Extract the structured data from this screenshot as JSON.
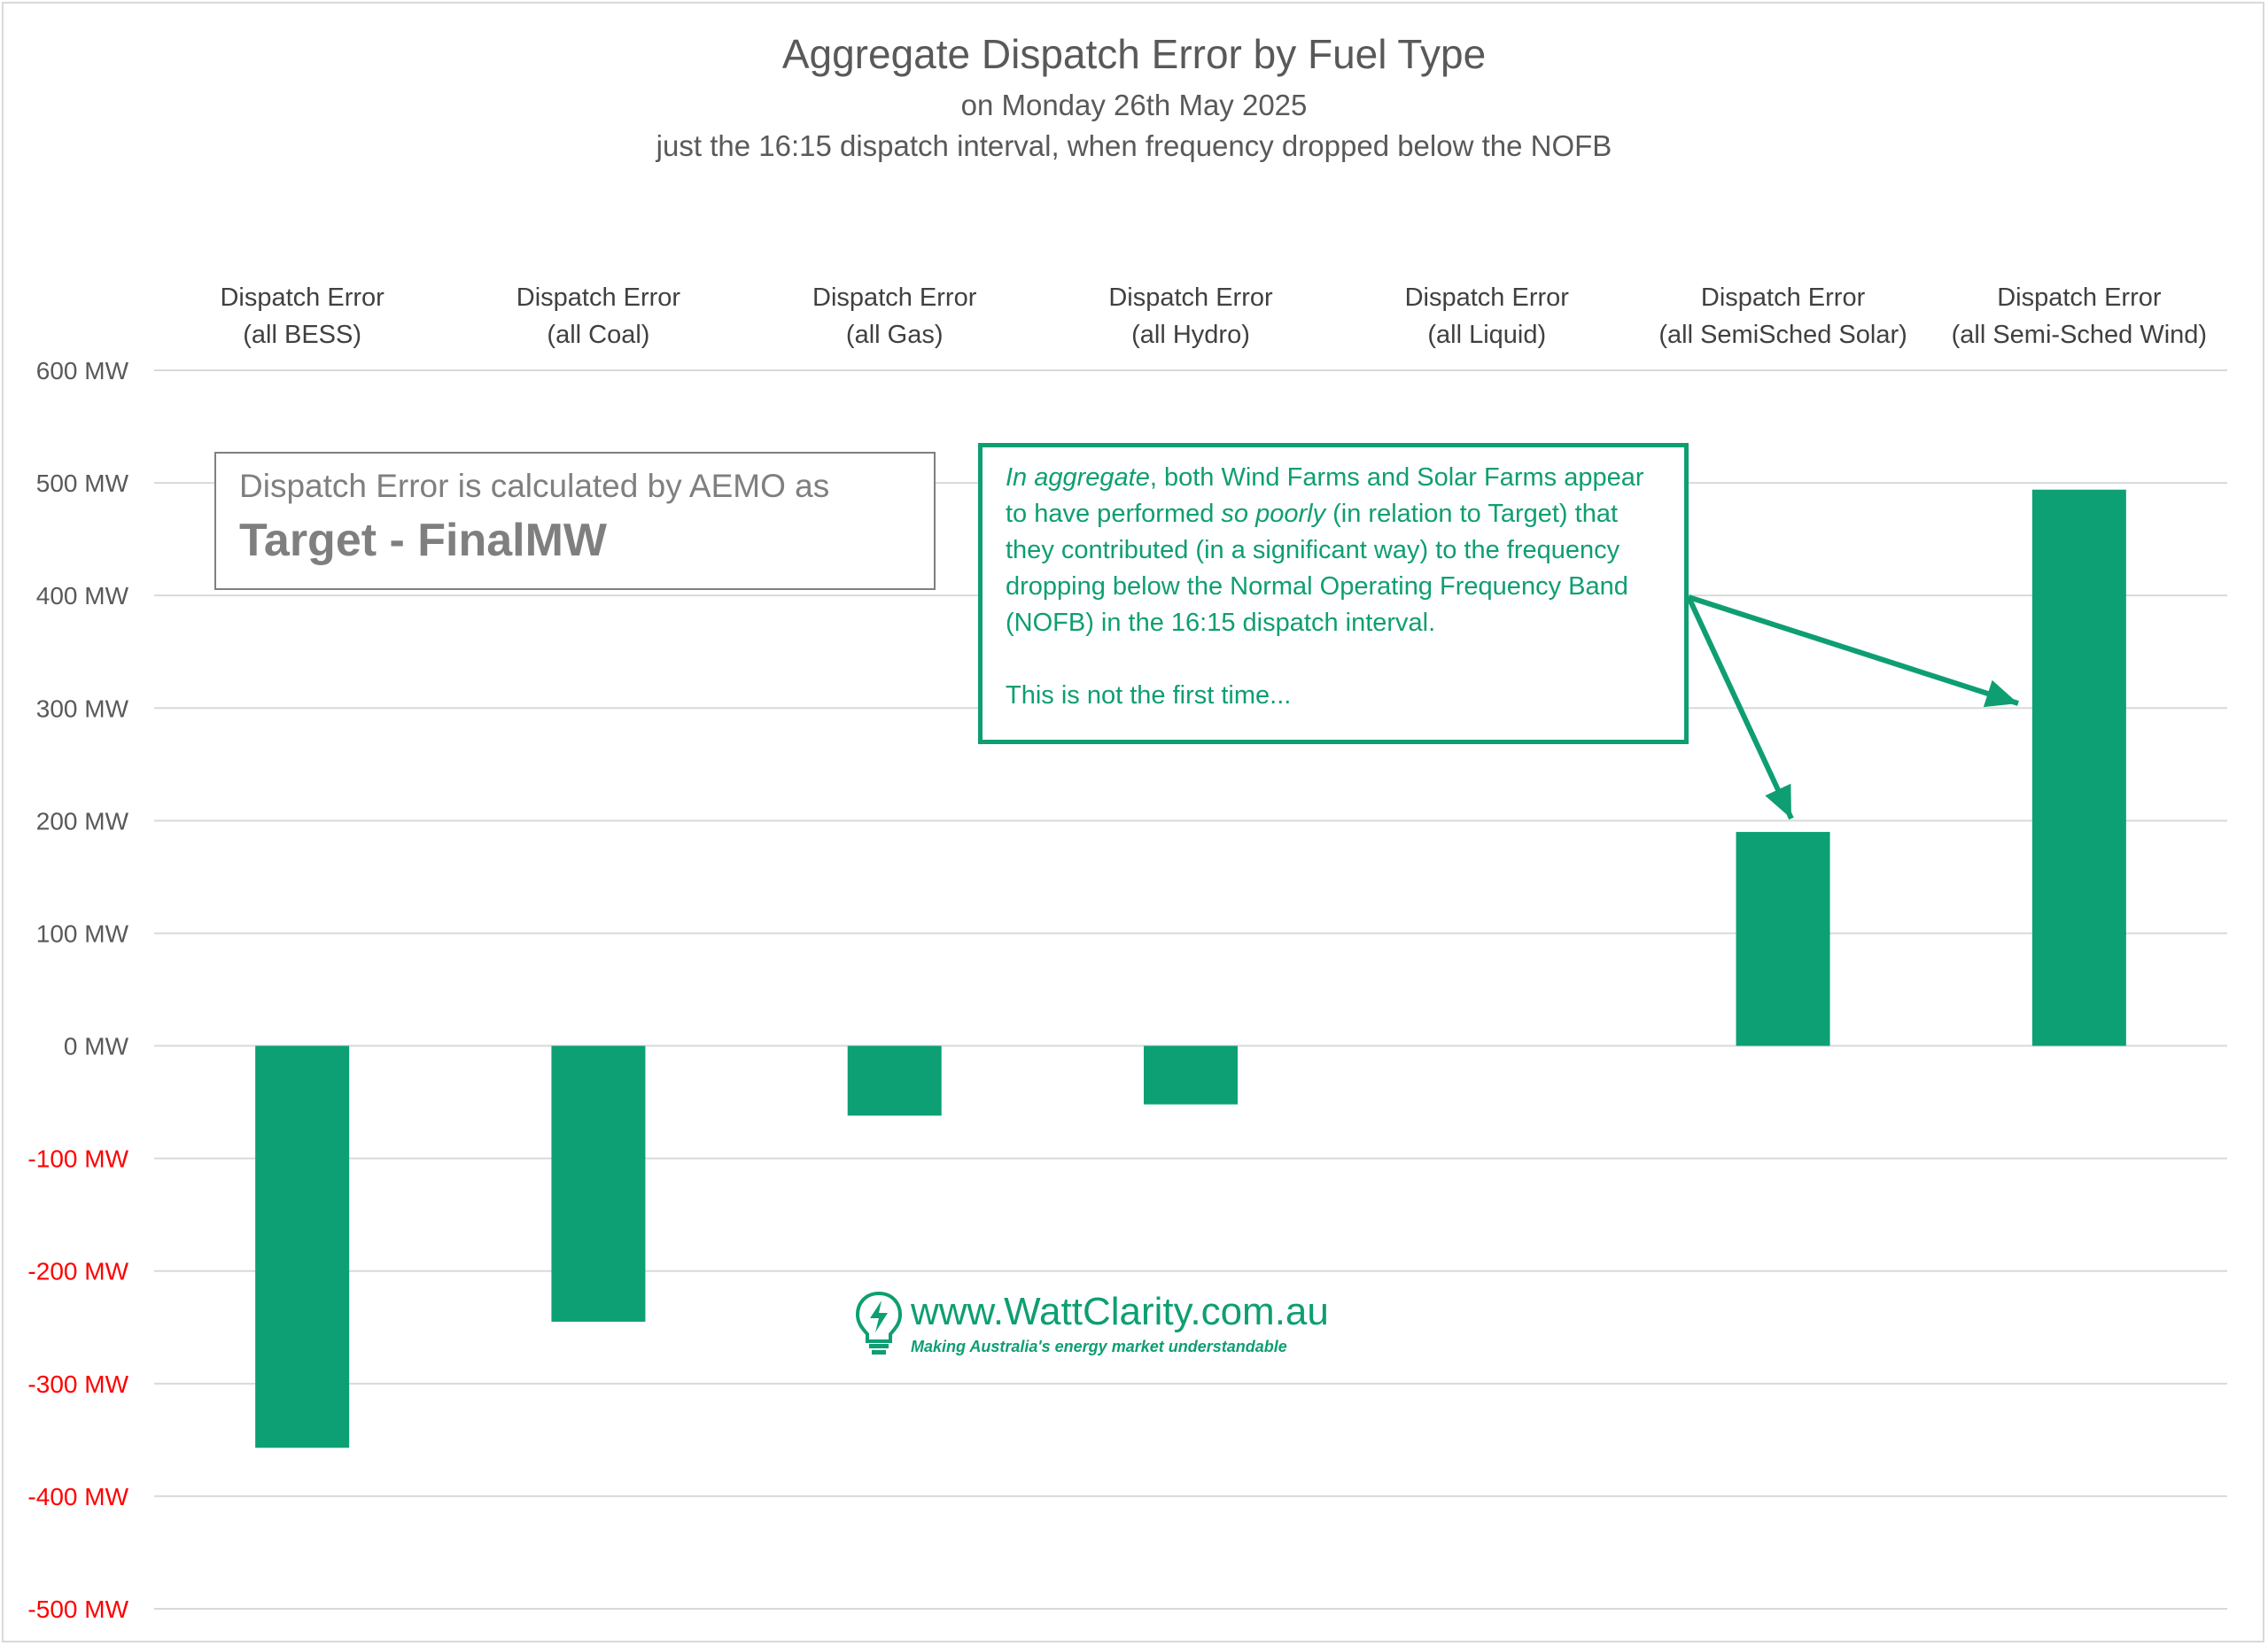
{
  "chart_data": {
    "type": "bar",
    "title": "Aggregate Dispatch Error by Fuel Type",
    "subtitle": "on Monday 26th May 2025",
    "subtitle2": "just the 16:15 dispatch interval, when frequency dropped below the NOFB",
    "categories": [
      [
        "Dispatch Error",
        "(all BESS)"
      ],
      [
        "Dispatch Error",
        "(all Coal)"
      ],
      [
        "Dispatch Error",
        "(all Gas)"
      ],
      [
        "Dispatch Error",
        "(all Hydro)"
      ],
      [
        "Dispatch Error",
        "(all Liquid)"
      ],
      [
        "Dispatch Error",
        "(all SemiSched Solar)"
      ],
      [
        "Dispatch Error",
        "(all Semi-Sched Wind)"
      ]
    ],
    "values": [
      -357,
      -245,
      -62,
      -52,
      0,
      190,
      494
    ],
    "ylim": [
      -500,
      600
    ],
    "yticks": [
      600,
      500,
      400,
      300,
      200,
      100,
      0,
      -100,
      -200,
      -300,
      -400,
      -500
    ],
    "ytick_suffix": " MW",
    "grid": true,
    "bar_color": "#0ca074",
    "negative_tick_color": "#ff0000",
    "positive_tick_color": "#595959"
  },
  "note": {
    "line1": "Dispatch Error is calculated by AEMO as",
    "line2": "Target - FinalMW"
  },
  "callout": {
    "part1_italic": "In aggregate",
    "part1": ", both Wind Farms and Solar Farms appear to have performed ",
    "part2_italic": "so poorly",
    "part2": " (in relation to Target) that they contributed (in a significant way) to the frequency dropping below the Normal Operating Frequency Band (NOFB) in the 16:15 dispatch interval.",
    "part3": "This is not the first time..."
  },
  "logo": {
    "url": "www.WattClarity.com.au",
    "tagline": "Making Australia's energy market understandable",
    "icon": "lightbulb-bolt-icon"
  }
}
